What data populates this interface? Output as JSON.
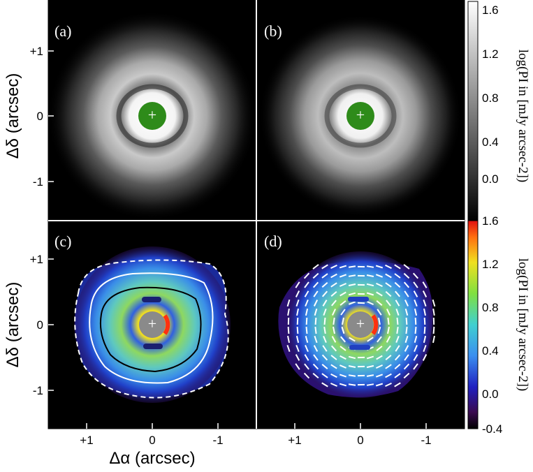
{
  "figure": {
    "panels": [
      {
        "id": "a",
        "label": "(a)",
        "colormap": "gray"
      },
      {
        "id": "b",
        "label": "(b)",
        "colormap": "gray"
      },
      {
        "id": "c",
        "label": "(c)",
        "colormap": "jet"
      },
      {
        "id": "d",
        "label": "(d)",
        "colormap": "jet"
      }
    ],
    "y_axis_label": "Δδ (arcsec)",
    "x_axis_label": "Δα (arcsec)",
    "x_ticks": [
      "+1",
      "0",
      "-1"
    ],
    "y_ticks": [
      "+1",
      "0",
      "-1"
    ],
    "center_marker": "+",
    "mask_color_gray": "#2e8b1a",
    "mask_color_jet": "#8a8a8a",
    "colorbar_gray": {
      "title": "log(PI in [mJy arcsec-2])",
      "ticks": [
        "1.6",
        "1.2",
        "0.8",
        "0.4",
        "0.0"
      ]
    },
    "colorbar_jet": {
      "title": "log(PI in [mJy arcsec-2])",
      "ticks": [
        "1.6",
        "1.2",
        "0.8",
        "0.4",
        "0.0",
        "-0.4"
      ]
    }
  }
}
